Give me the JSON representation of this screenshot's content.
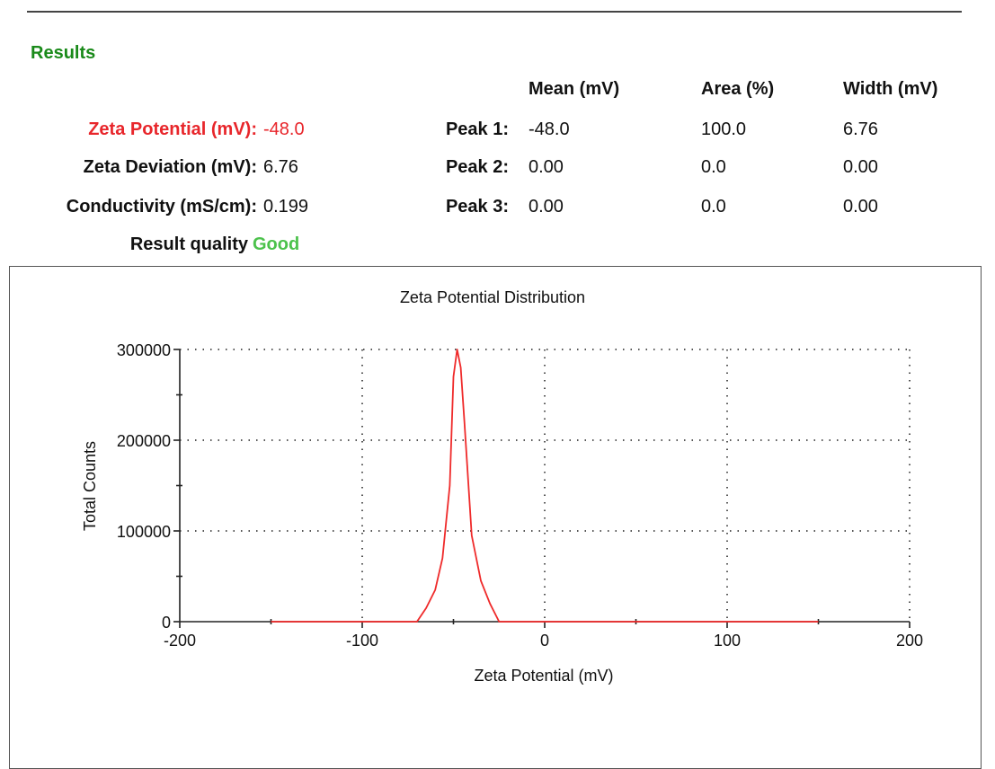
{
  "results": {
    "title": "Results",
    "zeta_potential": {
      "label": "Zeta Potential (mV):",
      "value": "-48.0"
    },
    "zeta_deviation": {
      "label": "Zeta Deviation (mV):",
      "value": "6.76"
    },
    "conductivity": {
      "label": "Conductivity (mS/cm):",
      "value": "0.199"
    },
    "quality": {
      "label": "Result quality",
      "value": "Good"
    }
  },
  "peaks": {
    "headers": {
      "mean": "Mean (mV)",
      "area": "Area (%)",
      "width": "Width (mV)"
    },
    "rows": [
      {
        "label": "Peak 1:",
        "mean": "-48.0",
        "area": "100.0",
        "width": "6.76"
      },
      {
        "label": "Peak 2:",
        "mean": "0.00",
        "area": "0.0",
        "width": "0.00"
      },
      {
        "label": "Peak 3:",
        "mean": "0.00",
        "area": "0.0",
        "width": "0.00"
      }
    ]
  },
  "colors": {
    "highlight": "#e8262b",
    "good": "#4cc24c",
    "title_green": "#1a8a1a",
    "line": "#ef2a2a"
  },
  "chart_data": {
    "type": "line",
    "title": "Zeta Potential Distribution",
    "xlabel": "Zeta Potential (mV)",
    "ylabel": "Total Counts",
    "xlim": [
      -200,
      200
    ],
    "ylim": [
      0,
      300000
    ],
    "x_ticks": [
      -200,
      -100,
      0,
      100,
      200
    ],
    "x_tick_labels": [
      "-200",
      "-100",
      "0",
      "100",
      "200"
    ],
    "y_ticks": [
      0,
      100000,
      200000,
      300000
    ],
    "y_tick_labels": [
      "0",
      "100000",
      "200000",
      "300000"
    ],
    "grid": true,
    "series": [
      {
        "name": "Zeta Potential Distribution",
        "x": [
          -150,
          -100,
          -70,
          -65,
          -60,
          -56,
          -52,
          -50,
          -48,
          -46,
          -44,
          -40,
          -35,
          -30,
          -25,
          0,
          50,
          100,
          150
        ],
        "y": [
          0,
          0,
          0,
          15000,
          35000,
          70000,
          150000,
          270000,
          300000,
          280000,
          220000,
          95000,
          45000,
          20000,
          0,
          0,
          0,
          0,
          0
        ]
      }
    ]
  }
}
